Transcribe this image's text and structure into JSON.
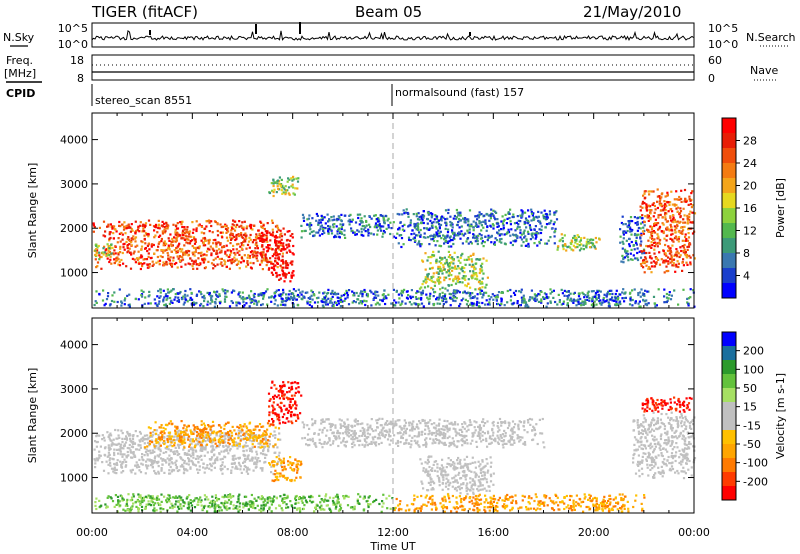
{
  "header": {
    "station": "TIGER (fitACF)",
    "beam": "Beam 05",
    "date": "21/May/2010"
  },
  "top_panels": {
    "nsky_label": "N.Sky",
    "nsky_ticks": [
      "10^5",
      "10^0"
    ],
    "nsearch_label": "N.Search",
    "nsearch_ticks": [
      "10^5",
      "10^0"
    ],
    "freq_label": "Freq.",
    "freq_unit": "[MHz]",
    "freq_ticks": [
      "18",
      "8"
    ],
    "nave_label": "Nave",
    "nave_ticks": [
      "60",
      "0"
    ],
    "cpid_label": "CPID",
    "cpid_entries": [
      {
        "name": "stereo_scan 8551",
        "start_hour": 0
      },
      {
        "name": "normalsound (fast) 157",
        "start_hour": 12
      }
    ]
  },
  "chart_data": [
    {
      "type": "heatmap",
      "title": "",
      "xlabel": "Time UT",
      "ylabel": "Slant Range [km]",
      "x_ticks": [
        "00:00",
        "04:00",
        "08:00",
        "12:00",
        "16:00",
        "20:00",
        "00:00"
      ],
      "x_tick_hours": [
        0,
        4,
        8,
        12,
        16,
        20,
        24
      ],
      "xlim": [
        0,
        24
      ],
      "ylim": [
        200,
        4600
      ],
      "y_ticks": [
        1000,
        2000,
        3000,
        4000
      ],
      "colorbar": {
        "label": "Power [dB]",
        "ticks": [
          "28",
          "24",
          "20",
          "16",
          "12",
          "8",
          "4"
        ],
        "range": [
          0,
          30
        ],
        "colors": [
          "#0000ff",
          "#1a3fcc",
          "#3a78b0",
          "#3c9a78",
          "#53b84e",
          "#8dd23d",
          "#e6d81f",
          "#f4a51b",
          "#f47b12",
          "#f04e0b",
          "#e81e06",
          "#ff0000"
        ]
      },
      "regions": [
        {
          "t0": 0.0,
          "t1": 7.6,
          "r0": 1100,
          "r1": 2200,
          "level": "high"
        },
        {
          "t0": 0.0,
          "t1": 0.8,
          "r0": 1300,
          "r1": 1700,
          "level": "mid"
        },
        {
          "t0": 6.5,
          "t1": 8.0,
          "r0": 1350,
          "r1": 2000,
          "level": "max"
        },
        {
          "t0": 7.0,
          "t1": 8.0,
          "r0": 800,
          "r1": 1350,
          "level": "max"
        },
        {
          "t0": 8.3,
          "t1": 12.0,
          "r0": 1800,
          "r1": 2350,
          "level": "low"
        },
        {
          "t0": 12.0,
          "t1": 18.5,
          "r0": 1600,
          "r1": 2450,
          "level": "low"
        },
        {
          "t0": 13.0,
          "t1": 15.8,
          "r0": 650,
          "r1": 1500,
          "level": "mid"
        },
        {
          "t0": 18.5,
          "t1": 20.2,
          "r0": 1500,
          "r1": 1900,
          "level": "mid"
        },
        {
          "t0": 21.0,
          "t1": 22.0,
          "r0": 1250,
          "r1": 2300,
          "level": "low"
        },
        {
          "t0": 21.8,
          "t1": 24.0,
          "r0": 1000,
          "r1": 2900,
          "level": "high"
        },
        {
          "t0": 0.0,
          "t1": 24.0,
          "r0": 250,
          "r1": 650,
          "level": "low"
        },
        {
          "t0": 7.0,
          "t1": 8.2,
          "r0": 2700,
          "r1": 3200,
          "level": "mid"
        }
      ]
    },
    {
      "type": "heatmap",
      "title": "",
      "xlabel": "Time UT",
      "ylabel": "Slant Range [km]",
      "x_ticks": [
        "00:00",
        "04:00",
        "08:00",
        "12:00",
        "16:00",
        "20:00",
        "00:00"
      ],
      "x_tick_hours": [
        0,
        4,
        8,
        12,
        16,
        20,
        24
      ],
      "xlim": [
        0,
        24
      ],
      "ylim": [
        200,
        4600
      ],
      "y_ticks": [
        1000,
        2000,
        3000,
        4000
      ],
      "colorbar": {
        "label": "Velocity [m s-1]",
        "ticks": [
          "200",
          "100",
          "50",
          "15",
          "-15",
          "-50",
          "-100",
          "-200"
        ],
        "range": [
          -250,
          250
        ],
        "colors": [
          "#ff0000",
          "#ff3b00",
          "#ff7a00",
          "#ffa500",
          "#ffc000",
          "#c0c0c0",
          "#c0c0c0",
          "#a6e063",
          "#63c23c",
          "#2c9a2c",
          "#1a6f9e",
          "#0000ff"
        ]
      },
      "regions": [
        {
          "t0": 0.0,
          "t1": 7.5,
          "r0": 1100,
          "r1": 2100,
          "level": "grey"
        },
        {
          "t0": 2.0,
          "t1": 7.5,
          "r0": 1700,
          "r1": 2300,
          "level": "orange"
        },
        {
          "t0": 7.0,
          "t1": 8.3,
          "r0": 2200,
          "r1": 3200,
          "level": "red"
        },
        {
          "t0": 7.0,
          "t1": 8.3,
          "r0": 900,
          "r1": 1500,
          "level": "orange"
        },
        {
          "t0": 8.3,
          "t1": 18.0,
          "r0": 1700,
          "r1": 2350,
          "level": "grey"
        },
        {
          "t0": 13.0,
          "t1": 16.0,
          "r0": 650,
          "r1": 1500,
          "level": "grey"
        },
        {
          "t0": 12.0,
          "t1": 22.0,
          "r0": 250,
          "r1": 650,
          "level": "orange"
        },
        {
          "t0": 0.0,
          "t1": 12.0,
          "r0": 250,
          "r1": 650,
          "level": "green"
        },
        {
          "t0": 21.5,
          "t1": 24.0,
          "r0": 1000,
          "r1": 2500,
          "level": "grey"
        },
        {
          "t0": 21.8,
          "t1": 24.0,
          "r0": 2500,
          "r1": 2850,
          "level": "red"
        }
      ]
    }
  ]
}
